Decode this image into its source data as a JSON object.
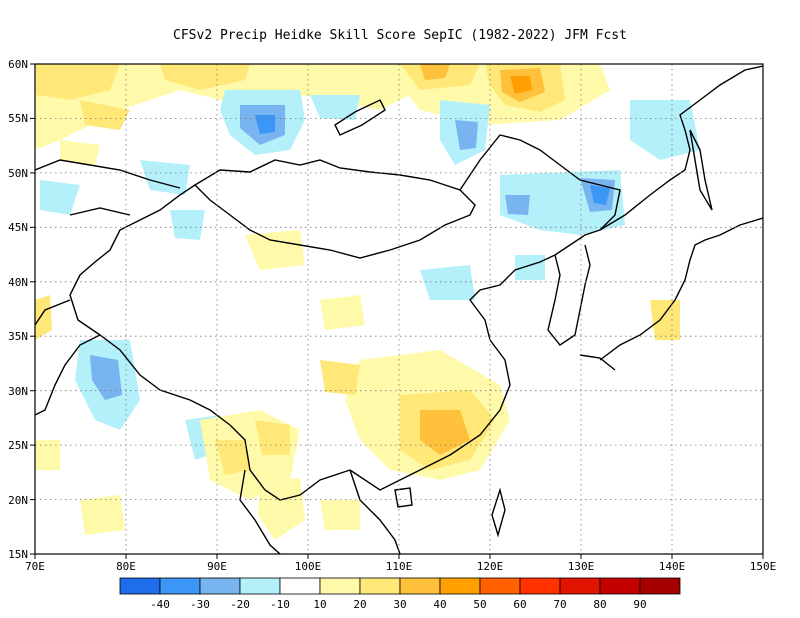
{
  "title": "CFSv2 Precip Heidke Skill Score SepIC (1982-2022) JFM Fcst",
  "lat_labels": [
    "60N",
    "55N",
    "50N",
    "45N",
    "40N",
    "35N",
    "30N",
    "25N",
    "20N",
    "15N"
  ],
  "lon_labels": [
    "70E",
    "80E",
    "90E",
    "100E",
    "110E",
    "120E",
    "130E",
    "140E",
    "150E"
  ],
  "legend": {
    "labels": [
      "-40",
      "-30",
      "-20",
      "-10",
      "10",
      "20",
      "30",
      "40",
      "50",
      "60",
      "70",
      "80",
      "90"
    ],
    "colors": [
      "#1e6eeb",
      "#3c96f5",
      "#78b4f0",
      "#b4f0fa",
      "#ffffff",
      "#fffaaa",
      "#ffe878",
      "#ffc03c",
      "#ffa000",
      "#ff6000",
      "#ff3200",
      "#e11400",
      "#a50000"
    ]
  },
  "palette": {
    "blue_dark": "#1e6eeb",
    "blue_mid": "#3c96f5",
    "blue_light": "#78b4f0",
    "blue_pale": "#b4f0fa",
    "yellow_pale": "#fffaaa",
    "yellow": "#ffe878",
    "orange_light": "#ffc03c",
    "orange": "#ffa000"
  }
}
